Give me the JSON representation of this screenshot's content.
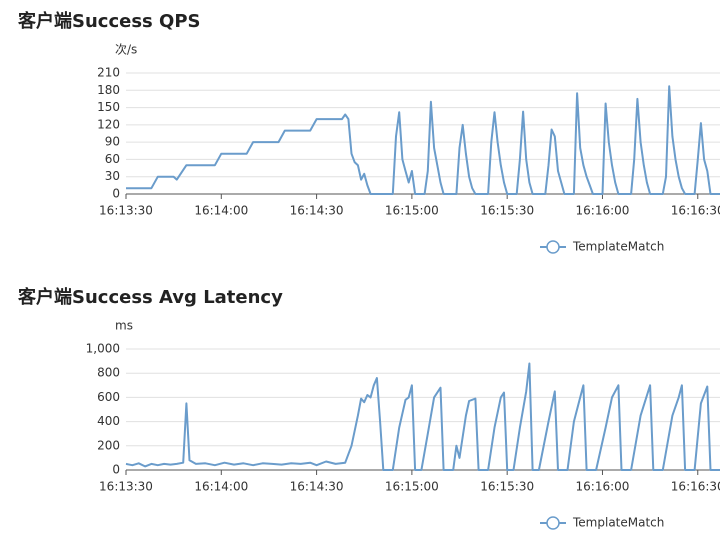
{
  "chart_data": [
    {
      "type": "line",
      "title": "客户端Success QPS",
      "y_label": "次/s",
      "x": [
        "16:13:30",
        "16:13:38",
        "16:13:40",
        "16:13:45",
        "16:13:46",
        "16:13:49",
        "16:13:58",
        "16:14:00",
        "16:14:08",
        "16:14:10",
        "16:14:18",
        "16:14:20",
        "16:14:28",
        "16:14:30",
        "16:14:38",
        "16:14:39",
        "16:14:40",
        "16:14:41",
        "16:14:42",
        "16:14:43",
        "16:14:44",
        "16:14:45",
        "16:14:46",
        "16:14:47",
        "16:14:54",
        "16:14:55",
        "16:14:56",
        "16:14:57",
        "16:14:58",
        "16:14:59",
        "16:15:00",
        "16:15:01",
        "16:15:04",
        "16:15:05",
        "16:15:06",
        "16:15:07",
        "16:15:08",
        "16:15:09",
        "16:15:10",
        "16:15:14",
        "16:15:15",
        "16:15:16",
        "16:15:17",
        "16:15:18",
        "16:15:19",
        "16:15:20",
        "16:15:24",
        "16:15:25",
        "16:15:26",
        "16:15:27",
        "16:15:28",
        "16:15:29",
        "16:15:30",
        "16:15:33",
        "16:15:34",
        "16:15:35",
        "16:15:36",
        "16:15:37",
        "16:15:38",
        "16:15:42",
        "16:15:43",
        "16:15:44",
        "16:15:45",
        "16:15:46",
        "16:15:47",
        "16:15:48",
        "16:15:51",
        "16:15:52",
        "16:15:53",
        "16:15:54",
        "16:15:55",
        "16:15:56",
        "16:15:57",
        "16:16:00",
        "16:16:01",
        "16:16:02",
        "16:16:03",
        "16:16:04",
        "16:16:05",
        "16:16:09",
        "16:16:10",
        "16:16:11",
        "16:16:12",
        "16:16:13",
        "16:16:14",
        "16:16:15",
        "16:16:19",
        "16:16:20",
        "16:16:21",
        "16:16:22",
        "16:16:23",
        "16:16:24",
        "16:16:25",
        "16:16:26",
        "16:16:29",
        "16:16:30",
        "16:16:31",
        "16:16:32",
        "16:16:33",
        "16:16:34",
        "16:16:37"
      ],
      "series": [
        {
          "name": "TemplateMatch",
          "color": "#6a9ccb",
          "values": [
            10,
            10,
            30,
            30,
            25,
            50,
            50,
            70,
            70,
            90,
            90,
            110,
            110,
            130,
            130,
            138,
            130,
            70,
            55,
            50,
            25,
            35,
            15,
            0,
            0,
            100,
            142,
            60,
            40,
            20,
            40,
            0,
            0,
            40,
            160,
            80,
            50,
            20,
            0,
            0,
            80,
            120,
            70,
            30,
            10,
            0,
            0,
            90,
            142,
            90,
            50,
            20,
            0,
            0,
            60,
            143,
            60,
            20,
            0,
            0,
            50,
            112,
            100,
            40,
            20,
            0,
            0,
            175,
            80,
            50,
            30,
            15,
            0,
            0,
            157,
            90,
            50,
            20,
            0,
            0,
            60,
            165,
            90,
            50,
            20,
            0,
            0,
            30,
            187,
            100,
            60,
            30,
            10,
            0,
            0,
            60,
            123,
            60,
            40,
            0,
            0
          ]
        }
      ],
      "xlim": [
        "16:13:30",
        "16:16:37"
      ],
      "xticks": [
        "16:13:30",
        "16:14:00",
        "16:14:30",
        "16:15:00",
        "16:15:30",
        "16:16:00",
        "16:16:30"
      ],
      "ylim": [
        0,
        210
      ],
      "yticks": [
        0,
        30,
        60,
        90,
        120,
        150,
        180,
        210
      ],
      "grid": true
    },
    {
      "type": "line",
      "title": "客户端Success Avg Latency",
      "y_label": "ms",
      "x": [
        "16:13:30",
        "16:13:32",
        "16:13:34",
        "16:13:36",
        "16:13:38",
        "16:13:40",
        "16:13:42",
        "16:13:44",
        "16:13:46",
        "16:13:48",
        "16:13:49",
        "16:13:50",
        "16:13:52",
        "16:13:55",
        "16:13:58",
        "16:14:01",
        "16:14:04",
        "16:14:07",
        "16:14:10",
        "16:14:13",
        "16:14:16",
        "16:14:19",
        "16:14:22",
        "16:14:25",
        "16:14:28",
        "16:14:30",
        "16:14:33",
        "16:14:36",
        "16:14:39",
        "16:14:41",
        "16:14:43",
        "16:14:44",
        "16:14:45",
        "16:14:46",
        "16:14:47",
        "16:14:48",
        "16:14:49",
        "16:14:50",
        "16:14:51",
        "16:14:54",
        "16:14:56",
        "16:14:58",
        "16:14:59",
        "16:15:00",
        "16:15:01",
        "16:15:03",
        "16:15:05",
        "16:15:07",
        "16:15:09",
        "16:15:10",
        "16:15:13",
        "16:15:14",
        "16:15:15",
        "16:15:17",
        "16:15:18",
        "16:15:20",
        "16:15:21",
        "16:15:24",
        "16:15:26",
        "16:15:28",
        "16:15:29",
        "16:15:30",
        "16:15:32",
        "16:15:34",
        "16:15:36",
        "16:15:37",
        "16:15:38",
        "16:15:40",
        "16:15:43",
        "16:15:45",
        "16:15:46",
        "16:15:49",
        "16:15:51",
        "16:15:53",
        "16:15:54",
        "16:15:55",
        "16:15:58",
        "16:16:01",
        "16:16:03",
        "16:16:05",
        "16:16:06",
        "16:16:09",
        "16:16:12",
        "16:16:15",
        "16:16:16",
        "16:16:19",
        "16:16:22",
        "16:16:24",
        "16:16:25",
        "16:16:26",
        "16:16:29",
        "16:16:31",
        "16:16:33",
        "16:16:34",
        "16:16:37"
      ],
      "series": [
        {
          "name": "TemplateMatch",
          "color": "#6a9ccb",
          "values": [
            50,
            40,
            55,
            30,
            50,
            40,
            50,
            45,
            50,
            60,
            550,
            80,
            50,
            55,
            40,
            60,
            45,
            55,
            40,
            55,
            50,
            45,
            55,
            50,
            60,
            40,
            70,
            50,
            60,
            200,
            450,
            590,
            560,
            620,
            600,
            700,
            760,
            400,
            0,
            0,
            350,
            580,
            600,
            700,
            0,
            0,
            300,
            600,
            680,
            0,
            0,
            200,
            100,
            450,
            570,
            590,
            0,
            0,
            350,
            600,
            640,
            0,
            0,
            350,
            650,
            880,
            0,
            0,
            400,
            650,
            0,
            0,
            400,
            600,
            700,
            0,
            0,
            350,
            600,
            700,
            0,
            0,
            450,
            700,
            0,
            0,
            450,
            600,
            700,
            0,
            0,
            550,
            690,
            0,
            0
          ]
        }
      ],
      "xlim": [
        "16:13:30",
        "16:16:37"
      ],
      "xticks": [
        "16:13:30",
        "16:14:00",
        "16:14:30",
        "16:15:00",
        "16:15:30",
        "16:16:00",
        "16:16:30"
      ],
      "ylim": [
        0,
        1000
      ],
      "yticks": [
        0,
        200,
        400,
        600,
        800,
        {
          "value": 1000,
          "label": "1,000"
        }
      ],
      "grid": true
    }
  ]
}
